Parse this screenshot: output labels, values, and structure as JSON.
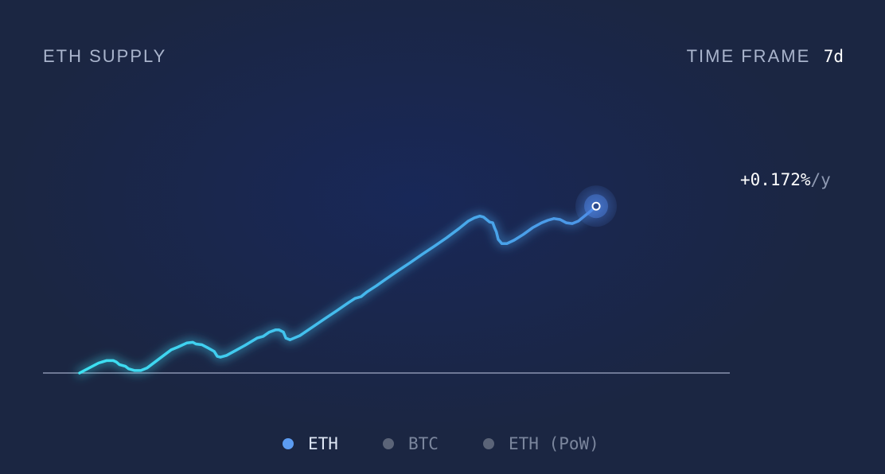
{
  "header": {
    "title": "ETH SUPPLY",
    "time_frame_label": "TIME FRAME",
    "time_frame_value": "7d"
  },
  "rate": {
    "value": "+0.172%",
    "unit": "/y"
  },
  "legend": [
    {
      "label": "ETH",
      "active": true,
      "color": "#5c9cf2",
      "text_color": "#dde5f3"
    },
    {
      "label": "BTC",
      "active": false,
      "color": "#5b6478",
      "text_color": "#7b869d"
    },
    {
      "label": "ETH (PoW)",
      "active": false,
      "color": "#5b6478",
      "text_color": "#7b869d"
    }
  ],
  "colors": {
    "line_start": "#3ce2f2",
    "line_end": "#4f86e6",
    "baseline": "#8a94b0",
    "background": "#1b2642"
  },
  "chart_data": {
    "type": "line",
    "title": "ETH SUPPLY",
    "xlabel": "",
    "ylabel": "",
    "grid": false,
    "legend_position": "bottom",
    "xlim": [
      0,
      100
    ],
    "ylim": [
      0,
      100
    ],
    "end_label": "+0.172%/y",
    "series": [
      {
        "name": "ETH",
        "points": [
          [
            0,
            0
          ],
          [
            3.1,
            5.2
          ],
          [
            4.4,
            6.5
          ],
          [
            5.5,
            6.5
          ],
          [
            6,
            5.8
          ],
          [
            6.5,
            4.4
          ],
          [
            7.5,
            3.5
          ],
          [
            8,
            2.2
          ],
          [
            9,
            1.3
          ],
          [
            10,
            1.3
          ],
          [
            11,
            2.6
          ],
          [
            13,
            7.4
          ],
          [
            15,
            12.2
          ],
          [
            16,
            13.5
          ],
          [
            17.5,
            15.7
          ],
          [
            18.5,
            16.1
          ],
          [
            19,
            15.2
          ],
          [
            20,
            14.8
          ],
          [
            21,
            13.1
          ],
          [
            22,
            11.3
          ],
          [
            22.5,
            8.7
          ],
          [
            23,
            8.3
          ],
          [
            24,
            9.2
          ],
          [
            25.5,
            11.8
          ],
          [
            27,
            14.4
          ],
          [
            29,
            18.3
          ],
          [
            30,
            19.2
          ],
          [
            31,
            21.4
          ],
          [
            32,
            22.6
          ],
          [
            32.6,
            22.6
          ],
          [
            33.3,
            21.4
          ],
          [
            33.7,
            18.3
          ],
          [
            34.4,
            17.4
          ],
          [
            36,
            19.6
          ],
          [
            38,
            23.9
          ],
          [
            40,
            28.3
          ],
          [
            42,
            32.6
          ],
          [
            44,
            37
          ],
          [
            45,
            39.1
          ],
          [
            46,
            40
          ],
          [
            47,
            42.6
          ],
          [
            48.5,
            45.7
          ],
          [
            50,
            49.1
          ],
          [
            52,
            53.5
          ],
          [
            54,
            57.8
          ],
          [
            56,
            62.2
          ],
          [
            58,
            66.5
          ],
          [
            60,
            70.9
          ],
          [
            62,
            75.7
          ],
          [
            63.5,
            79.6
          ],
          [
            64.5,
            81.3
          ],
          [
            65.4,
            82.2
          ],
          [
            66,
            81.7
          ],
          [
            67,
            79.1
          ],
          [
            67.5,
            78.7
          ],
          [
            67.8,
            76.1
          ],
          [
            68.1,
            73.9
          ],
          [
            68.4,
            70
          ],
          [
            69,
            67.8
          ],
          [
            69.8,
            67.8
          ],
          [
            71,
            69.6
          ],
          [
            72.5,
            72.6
          ],
          [
            74,
            76.1
          ],
          [
            75.5,
            78.7
          ],
          [
            76.5,
            80
          ],
          [
            77.5,
            80.9
          ],
          [
            78.5,
            80.4
          ],
          [
            79.5,
            78.7
          ],
          [
            80.5,
            78.3
          ],
          [
            81.5,
            79.6
          ],
          [
            82.5,
            82.2
          ],
          [
            83.5,
            84.8
          ],
          [
            84.4,
            87.4
          ]
        ]
      }
    ]
  }
}
